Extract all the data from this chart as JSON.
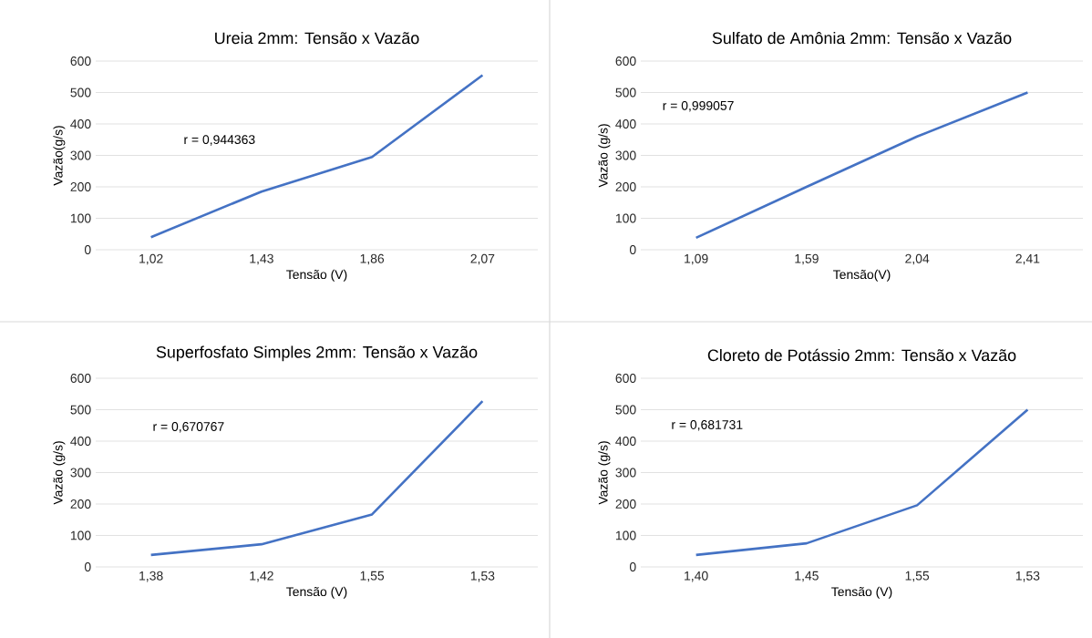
{
  "chart_data": [
    {
      "type": "line",
      "title": "Ureia 2mm: Tensão x Vazão",
      "xlabel": "Tensão (V)",
      "ylabel": "Vazão(g/s)",
      "categories": [
        "1,02",
        "1,43",
        "1,86",
        "2,07"
      ],
      "values": [
        40,
        185,
        295,
        555
      ],
      "color": "#4472c4",
      "ylim": [
        0,
        600
      ],
      "yticks": [
        0,
        100,
        200,
        300,
        400,
        500,
        600
      ],
      "grid": "y",
      "annotations": [
        "r = 0,944363"
      ]
    },
    {
      "type": "line",
      "title": "Sulfato de Amônia 2mm: Tensão x Vazão",
      "xlabel": "Tensão(V)",
      "ylabel": "Vazão (g/s)",
      "categories": [
        "1,09",
        "1,59",
        "2,04",
        "2,41"
      ],
      "values": [
        38,
        200,
        360,
        500
      ],
      "color": "#4472c4",
      "ylim": [
        0,
        600
      ],
      "yticks": [
        0,
        100,
        200,
        300,
        400,
        500,
        600
      ],
      "grid": "y",
      "annotations": [
        "r = 0,999057"
      ]
    },
    {
      "type": "line",
      "title": "Superfosfato Simples 2mm: Tensão x Vazão",
      "xlabel": "Tensão (V)",
      "ylabel": "Vazão (g/s)",
      "categories": [
        "1,38",
        "1,42",
        "1,55",
        "1,53"
      ],
      "values": [
        38,
        72,
        167,
        527
      ],
      "color": "#4472c4",
      "ylim": [
        0,
        600
      ],
      "yticks": [
        0,
        100,
        200,
        300,
        400,
        500,
        600
      ],
      "grid": "y",
      "annotations": [
        "r = 0,670767"
      ]
    },
    {
      "type": "line",
      "title": "Cloreto de Potássio 2mm: Tensão x Vazão",
      "xlabel": "Tensão (V)",
      "ylabel": "Vazão (g/s)",
      "categories": [
        "1,40",
        "1,45",
        "1,55",
        "1,53"
      ],
      "values": [
        38,
        75,
        196,
        500
      ],
      "color": "#4472c4",
      "ylim": [
        0,
        600
      ],
      "yticks": [
        0,
        100,
        200,
        300,
        400,
        500,
        600
      ],
      "grid": "y",
      "annotations": [
        "r = 0,681731"
      ]
    }
  ]
}
